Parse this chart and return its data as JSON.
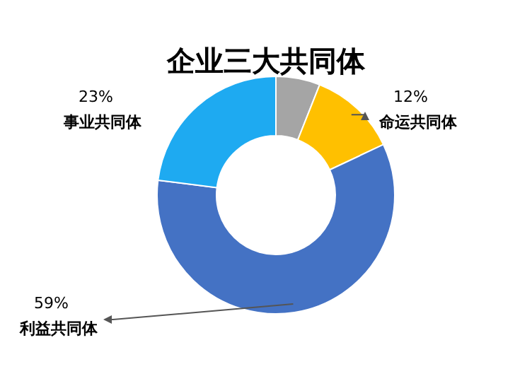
{
  "chart_data": {
    "type": "donut",
    "title": "企业三大共同体",
    "categories": [
      null,
      "命运共同体",
      "利益共同体",
      "事业共同体"
    ],
    "values": [
      6,
      12,
      59,
      23
    ],
    "colors": [
      "#a5a5a5",
      "#ffc000",
      "#4472c4",
      "#1eaaf1"
    ],
    "value_labels": [
      null,
      "12%",
      "59%",
      "23%"
    ]
  }
}
